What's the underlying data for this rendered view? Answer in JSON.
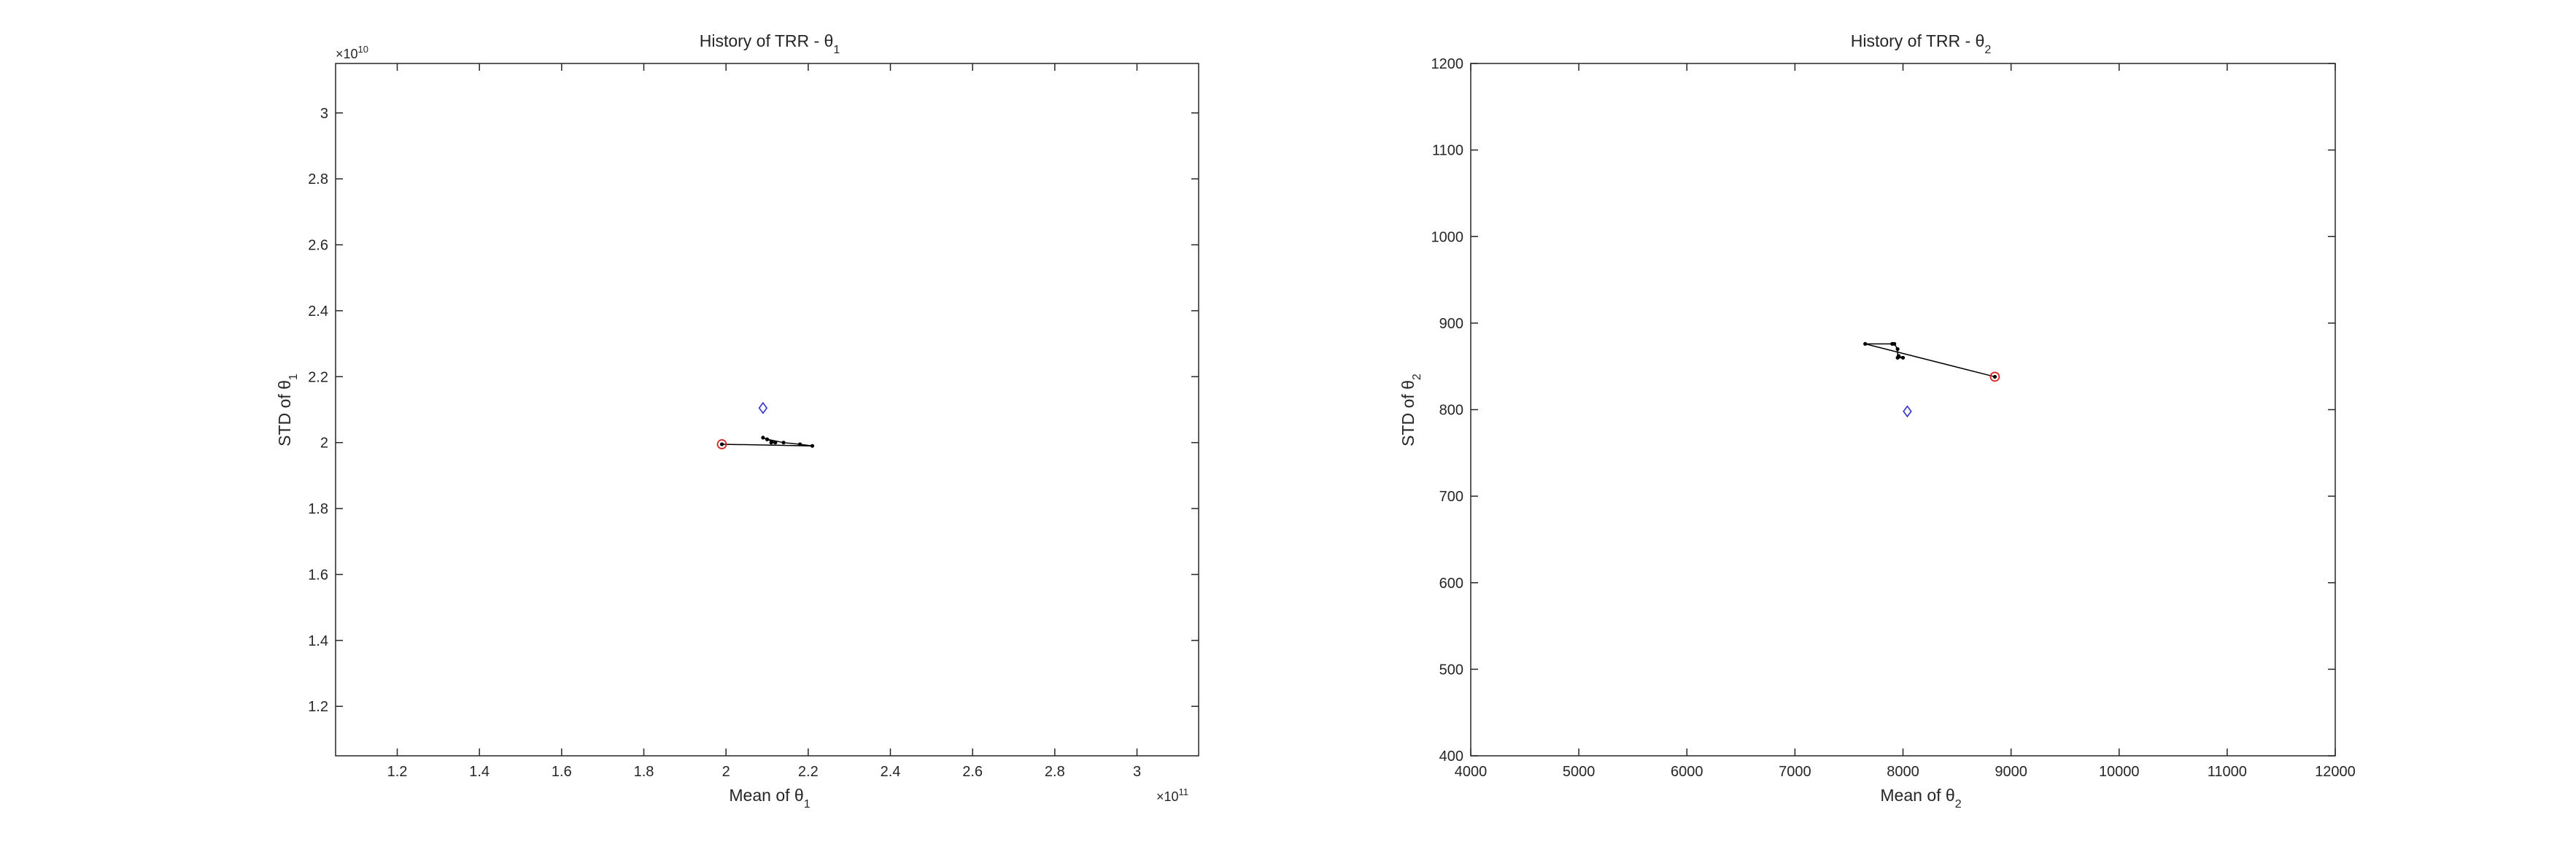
{
  "chart_data": [
    {
      "type": "line",
      "title": "History of TRR - θ",
      "title_sub": "1",
      "xlabel": "Mean of θ",
      "xlabel_sub": "1",
      "ylabel": "STD of θ",
      "ylabel_sub": "1",
      "x_exponent_base": "×10",
      "x_exponent_power": "11",
      "y_exponent_base": "×10",
      "y_exponent_power": "10",
      "xlim": [
        1.05,
        3.15
      ],
      "ylim": [
        1.05,
        3.15
      ],
      "x_ticks": [
        1.2,
        1.4,
        1.6,
        1.8,
        2,
        2.2,
        2.4,
        2.6,
        2.8,
        3
      ],
      "x_tick_labels": [
        "1.2",
        "1.4",
        "1.6",
        "1.8",
        "2",
        "2.2",
        "2.4",
        "2.6",
        "2.8",
        "3"
      ],
      "y_ticks": [
        1.2,
        1.4,
        1.6,
        1.8,
        2,
        2.2,
        2.4,
        2.6,
        2.8,
        3
      ],
      "y_tick_labels": [
        "1.2",
        "1.4",
        "1.6",
        "1.8",
        "2",
        "2.2",
        "2.4",
        "2.6",
        "2.8",
        "3"
      ],
      "grid": false,
      "series": [
        {
          "style": "black-line-dot-markers",
          "color": "#000000",
          "x": [
            1.99,
            2.21,
            2.18,
            2.14,
            2.1,
            2.09,
            2.1,
            2.12,
            2.11
          ],
          "y": [
            1.995,
            1.99,
            1.995,
            2.0,
            2.01,
            2.015,
            2.01,
            2.0,
            2.0
          ]
        },
        {
          "style": "start-circle",
          "color": "#d62728",
          "x": [
            1.99
          ],
          "y": [
            1.995
          ]
        },
        {
          "style": "target-diamond",
          "color": "#3333cc",
          "x": [
            2.09
          ],
          "y": [
            2.105
          ]
        }
      ]
    },
    {
      "type": "line",
      "title": "History of TRR - θ",
      "title_sub": "2",
      "xlabel": "Mean of θ",
      "xlabel_sub": "2",
      "ylabel": "STD of θ",
      "ylabel_sub": "2",
      "xlim": [
        4000,
        12000
      ],
      "ylim": [
        400,
        1200
      ],
      "x_ticks": [
        4000,
        5000,
        6000,
        7000,
        8000,
        9000,
        10000,
        11000,
        12000
      ],
      "x_tick_labels": [
        "4000",
        "5000",
        "6000",
        "7000",
        "8000",
        "9000",
        "10000",
        "11000",
        "12000"
      ],
      "y_ticks": [
        400,
        500,
        600,
        700,
        800,
        900,
        1000,
        1100,
        1200
      ],
      "y_tick_labels": [
        "400",
        "500",
        "600",
        "700",
        "800",
        "900",
        "1000",
        "1100",
        "1200"
      ],
      "grid": false,
      "series": [
        {
          "style": "black-line-dot-markers",
          "color": "#000000",
          "x": [
            8850,
            7650,
            7900,
            7920,
            7950,
            7950,
            8000,
            7960
          ],
          "y": [
            838,
            876,
            876,
            876,
            870,
            860,
            860,
            862
          ]
        },
        {
          "style": "start-circle",
          "color": "#d62728",
          "x": [
            8850
          ],
          "y": [
            838
          ]
        },
        {
          "style": "target-diamond",
          "color": "#3333cc",
          "x": [
            8040
          ],
          "y": [
            798
          ]
        }
      ]
    }
  ]
}
